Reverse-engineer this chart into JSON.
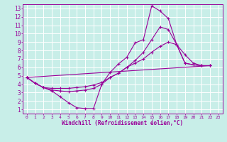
{
  "xlabel": "Windchill (Refroidissement éolien,°C)",
  "background_color": "#c8eee8",
  "grid_color": "#aaddcc",
  "line_color": "#990099",
  "xlim": [
    -0.5,
    23.5
  ],
  "ylim": [
    0.5,
    13.5
  ],
  "xticks": [
    0,
    1,
    2,
    3,
    4,
    5,
    6,
    7,
    8,
    9,
    10,
    11,
    12,
    13,
    14,
    15,
    16,
    17,
    18,
    19,
    20,
    21,
    22,
    23
  ],
  "yticks": [
    1,
    2,
    3,
    4,
    5,
    6,
    7,
    8,
    9,
    10,
    11,
    12,
    13
  ],
  "series": [
    {
      "x": [
        0,
        1,
        2,
        3,
        4,
        5,
        6,
        7,
        8,
        9,
        10,
        11,
        12,
        13,
        14,
        15,
        16,
        17,
        18,
        19,
        20,
        21,
        22
      ],
      "y": [
        4.8,
        4.1,
        3.6,
        3.2,
        2.5,
        1.8,
        1.2,
        1.1,
        1.1,
        4.0,
        5.4,
        6.4,
        7.2,
        8.9,
        9.3,
        13.3,
        12.7,
        11.8,
        8.7,
        6.5,
        6.3,
        6.2,
        6.2
      ]
    },
    {
      "x": [
        0,
        1,
        2,
        3,
        4,
        5,
        6,
        7,
        8,
        9,
        10,
        11,
        12,
        13,
        14,
        15,
        16,
        17,
        18,
        19,
        20,
        21,
        22
      ],
      "y": [
        4.8,
        4.1,
        3.6,
        3.3,
        3.2,
        3.1,
        3.2,
        3.3,
        3.5,
        4.0,
        4.8,
        5.3,
        6.0,
        6.8,
        7.8,
        9.3,
        10.8,
        10.5,
        8.7,
        6.5,
        6.3,
        6.2,
        6.2
      ]
    },
    {
      "x": [
        0,
        1,
        2,
        3,
        4,
        5,
        6,
        7,
        8,
        9,
        10,
        11,
        12,
        13,
        14,
        15,
        16,
        17,
        18,
        19,
        20,
        21,
        22
      ],
      "y": [
        4.8,
        4.1,
        3.6,
        3.5,
        3.5,
        3.5,
        3.6,
        3.7,
        3.9,
        4.2,
        4.8,
        5.3,
        6.0,
        6.5,
        7.0,
        7.8,
        8.5,
        9.0,
        8.7,
        7.5,
        6.5,
        6.2,
        6.2
      ]
    },
    {
      "x": [
        0,
        22
      ],
      "y": [
        4.8,
        6.2
      ]
    }
  ]
}
